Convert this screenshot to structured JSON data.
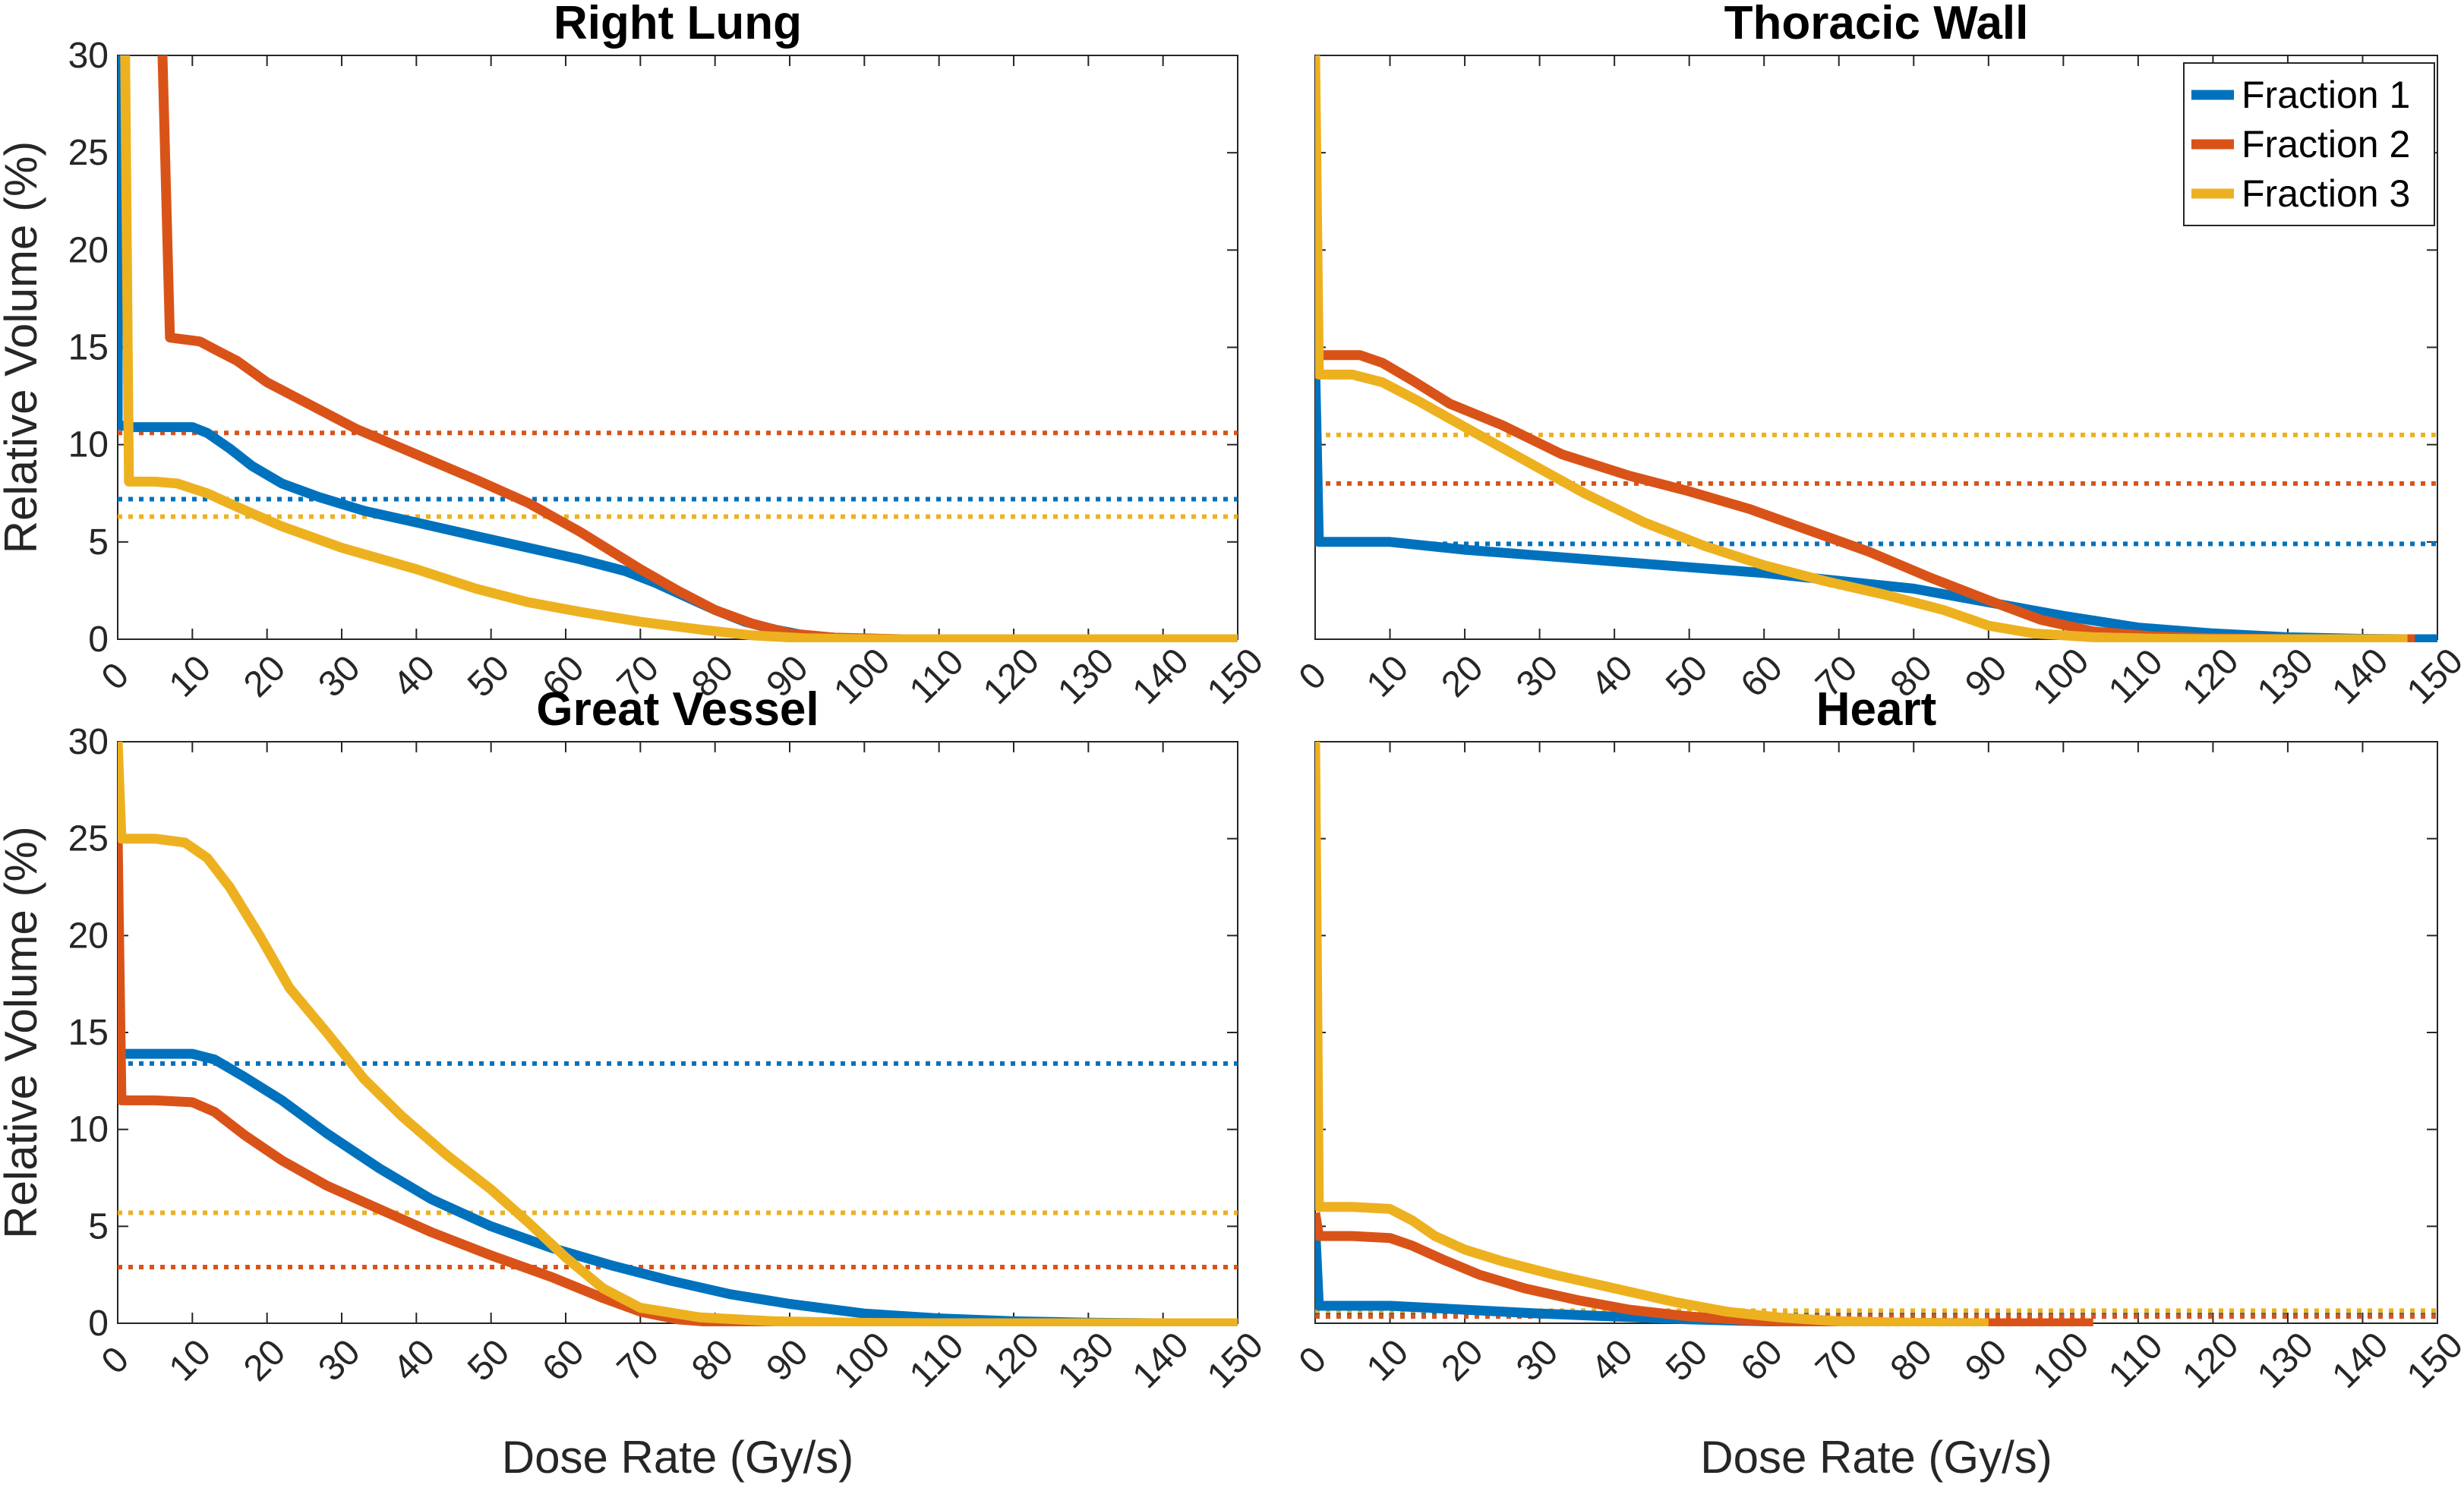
{
  "chart_data": {
    "type": "line",
    "layout": "2x2 subplots",
    "x_label": "Dose Rate (Gy/s)",
    "y_label": "Relative Volume (%)",
    "xlim": [
      0,
      150
    ],
    "ylim": [
      0,
      30
    ],
    "x_ticks": [
      0,
      10,
      20,
      30,
      40,
      50,
      60,
      70,
      80,
      90,
      100,
      110,
      120,
      130,
      140,
      150
    ],
    "y_ticks": [
      0,
      5,
      10,
      15,
      20,
      25,
      30
    ],
    "legend": {
      "placement": "top-right of Thoracic Wall panel",
      "entries": [
        {
          "name": "Fraction 1",
          "color": "#0072BD"
        },
        {
          "name": "Fraction 2",
          "color": "#D95319"
        },
        {
          "name": "Fraction 3",
          "color": "#EDB120"
        }
      ]
    },
    "panels": [
      {
        "title": "Right Lung",
        "series": [
          {
            "name": "Fraction 1",
            "color": "#0072BD",
            "points": [
              [
                0,
                30
              ],
              [
                0,
                11
              ],
              [
                2,
                10.9
              ],
              [
                6,
                10.9
              ],
              [
                10,
                10.9
              ],
              [
                12,
                10.6
              ],
              [
                15,
                9.8
              ],
              [
                18,
                8.9
              ],
              [
                22,
                8
              ],
              [
                27,
                7.3
              ],
              [
                33,
                6.6
              ],
              [
                40,
                6
              ],
              [
                48,
                5.3
              ],
              [
                55,
                4.7
              ],
              [
                62,
                4.1
              ],
              [
                68,
                3.5
              ],
              [
                72,
                2.9
              ],
              [
                76,
                2.2
              ],
              [
                80,
                1.5
              ],
              [
                84,
                0.9
              ],
              [
                88,
                0.5
              ],
              [
                92,
                0.2
              ],
              [
                97,
                0.05
              ],
              [
                105,
                0
              ],
              [
                150,
                0
              ]
            ],
            "mean_line": 7.2
          },
          {
            "name": "Fraction 2",
            "color": "#D95319",
            "points": [
              [
                6,
                30
              ],
              [
                7,
                15.5
              ],
              [
                11,
                15.3
              ],
              [
                13,
                14.9
              ],
              [
                16,
                14.3
              ],
              [
                20,
                13.2
              ],
              [
                26,
                12
              ],
              [
                32,
                10.8
              ],
              [
                40,
                9.5
              ],
              [
                48,
                8.2
              ],
              [
                55,
                7
              ],
              [
                62,
                5.5
              ],
              [
                70,
                3.6
              ],
              [
                75,
                2.5
              ],
              [
                80,
                1.5
              ],
              [
                85,
                0.8
              ],
              [
                90,
                0.3
              ],
              [
                96,
                0.08
              ],
              [
                105,
                0
              ],
              [
                150,
                0
              ]
            ],
            "mean_line": 10.6
          },
          {
            "name": "Fraction 3",
            "color": "#EDB120",
            "points": [
              [
                1,
                30
              ],
              [
                1.5,
                8.1
              ],
              [
                5,
                8.1
              ],
              [
                8,
                8
              ],
              [
                12,
                7.5
              ],
              [
                16,
                6.8
              ],
              [
                22,
                5.8
              ],
              [
                30,
                4.7
              ],
              [
                40,
                3.6
              ],
              [
                48,
                2.6
              ],
              [
                55,
                1.9
              ],
              [
                62,
                1.4
              ],
              [
                70,
                0.9
              ],
              [
                78,
                0.5
              ],
              [
                85,
                0.2
              ],
              [
                92,
                0.05
              ],
              [
                100,
                0
              ],
              [
                150,
                0
              ]
            ],
            "mean_line": 6.3
          }
        ]
      },
      {
        "title": "Thoracic Wall",
        "series": [
          {
            "name": "Fraction 1",
            "color": "#0072BD",
            "points": [
              [
                0,
                14
              ],
              [
                0.5,
                5
              ],
              [
                5,
                5
              ],
              [
                10,
                5
              ],
              [
                20,
                4.6
              ],
              [
                30,
                4.3
              ],
              [
                40,
                4
              ],
              [
                50,
                3.7
              ],
              [
                60,
                3.4
              ],
              [
                70,
                3
              ],
              [
                80,
                2.6
              ],
              [
                90,
                1.9
              ],
              [
                100,
                1.2
              ],
              [
                110,
                0.6
              ],
              [
                120,
                0.3
              ],
              [
                130,
                0.1
              ],
              [
                140,
                0.02
              ],
              [
                147,
                0
              ],
              [
                150,
                0
              ]
            ],
            "mean_line": 4.9
          },
          {
            "name": "Fraction 2",
            "color": "#D95319",
            "points": [
              [
                1,
                14.6
              ],
              [
                6,
                14.6
              ],
              [
                9,
                14.2
              ],
              [
                13,
                13.3
              ],
              [
                18,
                12.1
              ],
              [
                25,
                11
              ],
              [
                33,
                9.5
              ],
              [
                42,
                8.4
              ],
              [
                50,
                7.6
              ],
              [
                58,
                6.7
              ],
              [
                66,
                5.6
              ],
              [
                74,
                4.5
              ],
              [
                82,
                3.2
              ],
              [
                90,
                2
              ],
              [
                97,
                1
              ],
              [
                104,
                0.4
              ],
              [
                112,
                0.15
              ],
              [
                120,
                0.05
              ],
              [
                130,
                0
              ],
              [
                147,
                0
              ]
            ],
            "mean_line": 8
          },
          {
            "name": "Fraction 3",
            "color": "#EDB120",
            "points": [
              [
                0,
                30
              ],
              [
                0.5,
                13.6
              ],
              [
                5,
                13.6
              ],
              [
                9,
                13.2
              ],
              [
                14,
                12.2
              ],
              [
                20,
                10.9
              ],
              [
                28,
                9.2
              ],
              [
                36,
                7.5
              ],
              [
                44,
                6
              ],
              [
                52,
                4.8
              ],
              [
                60,
                3.8
              ],
              [
                68,
                3
              ],
              [
                76,
                2.3
              ],
              [
                84,
                1.5
              ],
              [
                90,
                0.7
              ],
              [
                96,
                0.3
              ],
              [
                104,
                0.1
              ],
              [
                112,
                0.03
              ],
              [
                120,
                0
              ],
              [
                146,
                0
              ]
            ],
            "mean_line": 10.5
          }
        ]
      },
      {
        "title": "Great Vessel",
        "series": [
          {
            "name": "Fraction 1",
            "color": "#0072BD",
            "points": [
              [
                0,
                13.5
              ],
              [
                0.5,
                13.9
              ],
              [
                5,
                13.9
              ],
              [
                10,
                13.9
              ],
              [
                13,
                13.6
              ],
              [
                17,
                12.7
              ],
              [
                22,
                11.5
              ],
              [
                28,
                9.8
              ],
              [
                35,
                8
              ],
              [
                42,
                6.4
              ],
              [
                50,
                5
              ],
              [
                58,
                3.9
              ],
              [
                66,
                3
              ],
              [
                74,
                2.2
              ],
              [
                82,
                1.5
              ],
              [
                90,
                1
              ],
              [
                100,
                0.5
              ],
              [
                110,
                0.25
              ],
              [
                120,
                0.1
              ],
              [
                130,
                0.03
              ],
              [
                140,
                0
              ],
              [
                150,
                0
              ]
            ],
            "mean_line": 13.4
          },
          {
            "name": "Fraction 2",
            "color": "#D95319",
            "points": [
              [
                0,
                25
              ],
              [
                0.5,
                11.5
              ],
              [
                5,
                11.5
              ],
              [
                10,
                11.4
              ],
              [
                13,
                10.9
              ],
              [
                17,
                9.7
              ],
              [
                22,
                8.4
              ],
              [
                28,
                7.1
              ],
              [
                35,
                5.9
              ],
              [
                42,
                4.7
              ],
              [
                50,
                3.5
              ],
              [
                58,
                2.4
              ],
              [
                65,
                1.3
              ],
              [
                70,
                0.6
              ],
              [
                75,
                0.2
              ],
              [
                80,
                0.05
              ],
              [
                95,
                0
              ]
            ],
            "mean_line": 2.9
          },
          {
            "name": "Fraction 3",
            "color": "#EDB120",
            "points": [
              [
                0,
                30
              ],
              [
                0.5,
                25
              ],
              [
                5,
                25
              ],
              [
                9,
                24.8
              ],
              [
                12,
                24
              ],
              [
                15,
                22.5
              ],
              [
                19,
                20
              ],
              [
                23,
                17.3
              ],
              [
                28,
                15
              ],
              [
                33,
                12.6
              ],
              [
                38,
                10.7
              ],
              [
                44,
                8.7
              ],
              [
                50,
                6.9
              ],
              [
                55,
                5.2
              ],
              [
                60,
                3.4
              ],
              [
                65,
                1.8
              ],
              [
                70,
                0.8
              ],
              [
                78,
                0.3
              ],
              [
                88,
                0.1
              ],
              [
                100,
                0.02
              ],
              [
                110,
                0
              ],
              [
                150,
                0
              ]
            ],
            "mean_line": 5.7
          }
        ]
      },
      {
        "title": "Heart",
        "series": [
          {
            "name": "Fraction 1",
            "color": "#0072BD",
            "points": [
              [
                0,
                5
              ],
              [
                0.5,
                0.9
              ],
              [
                10,
                0.9
              ],
              [
                20,
                0.7
              ],
              [
                30,
                0.5
              ],
              [
                40,
                0.35
              ],
              [
                50,
                0.2
              ],
              [
                60,
                0.1
              ],
              [
                70,
                0.05
              ],
              [
                80,
                0.02
              ],
              [
                90,
                0
              ]
            ],
            "mean_line": 0.5
          },
          {
            "name": "Fraction 2",
            "color": "#D95319",
            "points": [
              [
                0,
                5.7
              ],
              [
                0.5,
                4.5
              ],
              [
                5,
                4.5
              ],
              [
                10,
                4.4
              ],
              [
                13,
                4
              ],
              [
                17,
                3.3
              ],
              [
                22,
                2.5
              ],
              [
                28,
                1.8
              ],
              [
                35,
                1.2
              ],
              [
                42,
                0.7
              ],
              [
                50,
                0.35
              ],
              [
                58,
                0.15
              ],
              [
                66,
                0.05
              ],
              [
                75,
                0.01
              ],
              [
                85,
                0
              ],
              [
                104,
                0
              ]
            ],
            "mean_line": 0.35
          },
          {
            "name": "Fraction 3",
            "color": "#EDB120",
            "points": [
              [
                0,
                30
              ],
              [
                0.5,
                6
              ],
              [
                5,
                6
              ],
              [
                10,
                5.9
              ],
              [
                13,
                5.3
              ],
              [
                16,
                4.5
              ],
              [
                20,
                3.8
              ],
              [
                25,
                3.2
              ],
              [
                32,
                2.5
              ],
              [
                40,
                1.8
              ],
              [
                48,
                1.1
              ],
              [
                55,
                0.6
              ],
              [
                62,
                0.3
              ],
              [
                70,
                0.1
              ],
              [
                80,
                0.02
              ],
              [
                90,
                0
              ]
            ],
            "mean_line": 0.65
          }
        ]
      }
    ]
  }
}
